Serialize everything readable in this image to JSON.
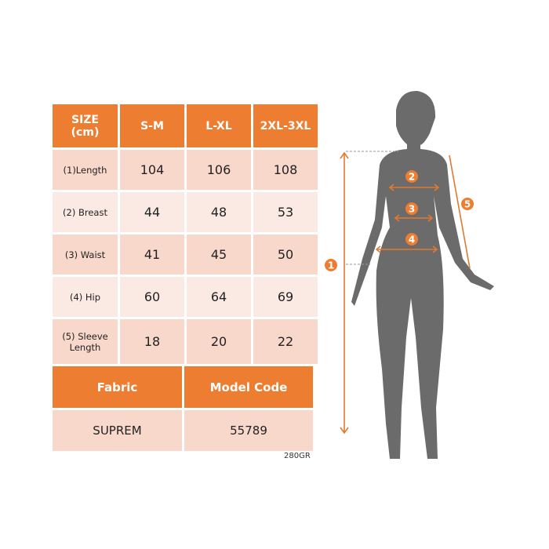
{
  "table": {
    "headers": [
      "SIZE\n(cm)",
      "S-M",
      "L-XL",
      "2XL-3XL"
    ],
    "rows": [
      {
        "label": "(1)Length",
        "values": [
          "104",
          "106",
          "108"
        ]
      },
      {
        "label": "(2) Breast",
        "values": [
          "44",
          "48",
          "53"
        ]
      },
      {
        "label": "(3) Waist",
        "values": [
          "41",
          "45",
          "50"
        ]
      },
      {
        "label": "(4) Hip",
        "values": [
          "60",
          "64",
          "69"
        ]
      },
      {
        "label": "(5) Sleeve Length",
        "values": [
          "18",
          "20",
          "22"
        ]
      }
    ],
    "fabric_label": "Fabric",
    "model_code_label": "Model Code",
    "fabric": "SUPREM",
    "model_code": "55789"
  },
  "weight_note": "280GR",
  "markers": [
    "1",
    "2",
    "3",
    "4",
    "5"
  ],
  "colors": {
    "accent": "#ec7d31",
    "cell": "#f8d8cb",
    "silhouette": "#6b6b6b"
  }
}
